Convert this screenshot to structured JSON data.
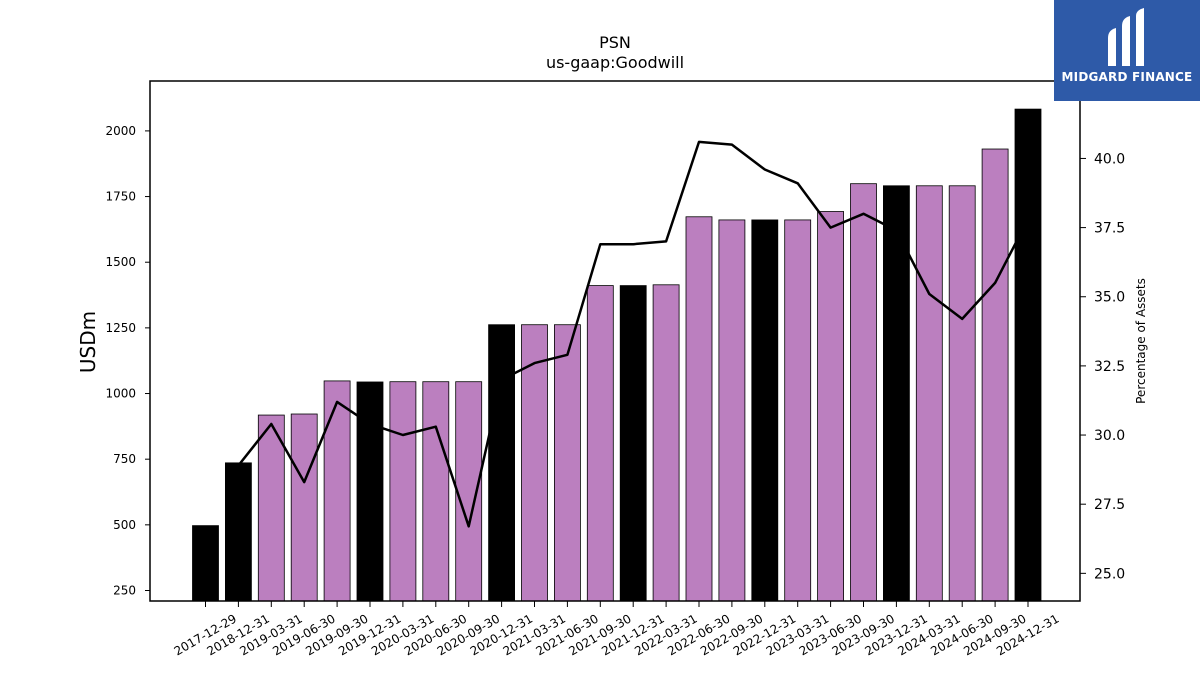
{
  "logo": {
    "brand": "MIDGARD FINANCE",
    "icon": "midgard-logo-mark-icon"
  },
  "chart_data": {
    "type": "bar",
    "title": "PSN",
    "subtitle": "us-gaap:Goodwill",
    "ylabel": "USDm",
    "y2label": "Percentage of Assets",
    "ylim": [
      210,
      2190
    ],
    "y2lim": [
      24.0,
      42.8
    ],
    "yticks": [
      250,
      500,
      750,
      1000,
      1250,
      1500,
      1750,
      2000
    ],
    "y2ticks": [
      "25.0",
      "27.5",
      "30.0",
      "32.5",
      "35.0",
      "37.5",
      "40.0"
    ],
    "colors": {
      "annual": "#000000",
      "quarterly": "#bb7fbf",
      "line": "#000000"
    },
    "categories": [
      "2017-12-29",
      "2018-12-31",
      "2019-03-31",
      "2019-06-30",
      "2019-09-30",
      "2019-12-31",
      "2020-03-31",
      "2020-06-30",
      "2020-09-30",
      "2020-12-31",
      "2021-03-31",
      "2021-06-30",
      "2021-09-30",
      "2021-12-31",
      "2022-03-31",
      "2022-06-30",
      "2022-09-30",
      "2022-12-31",
      "2023-03-31",
      "2023-06-30",
      "2023-09-30",
      "2023-12-31",
      "2024-03-31",
      "2024-06-30",
      "2024-09-30",
      "2024-12-31"
    ],
    "series": [
      {
        "type": "bar",
        "values": [
          497,
          736,
          918,
          922,
          1048,
          1044,
          1045,
          1045,
          1045,
          1262,
          1262,
          1262,
          1411,
          1411,
          1414,
          1673,
          1661,
          1661,
          1661,
          1693,
          1799,
          1791,
          1791,
          1791,
          1931,
          2083
        ],
        "annual": [
          true,
          true,
          false,
          false,
          false,
          true,
          false,
          false,
          false,
          true,
          false,
          false,
          false,
          true,
          false,
          false,
          false,
          true,
          false,
          false,
          false,
          true,
          false,
          false,
          false,
          true
        ]
      },
      {
        "type": "line",
        "axis": "right",
        "values": [
          null,
          28.9,
          30.4,
          28.3,
          31.2,
          30.4,
          30.0,
          30.3,
          26.7,
          32.0,
          32.6,
          32.9,
          36.9,
          36.9,
          37.0,
          40.6,
          40.5,
          39.6,
          39.1,
          37.5,
          38.0,
          37.4,
          35.1,
          34.2,
          35.5,
          37.8
        ]
      }
    ]
  }
}
